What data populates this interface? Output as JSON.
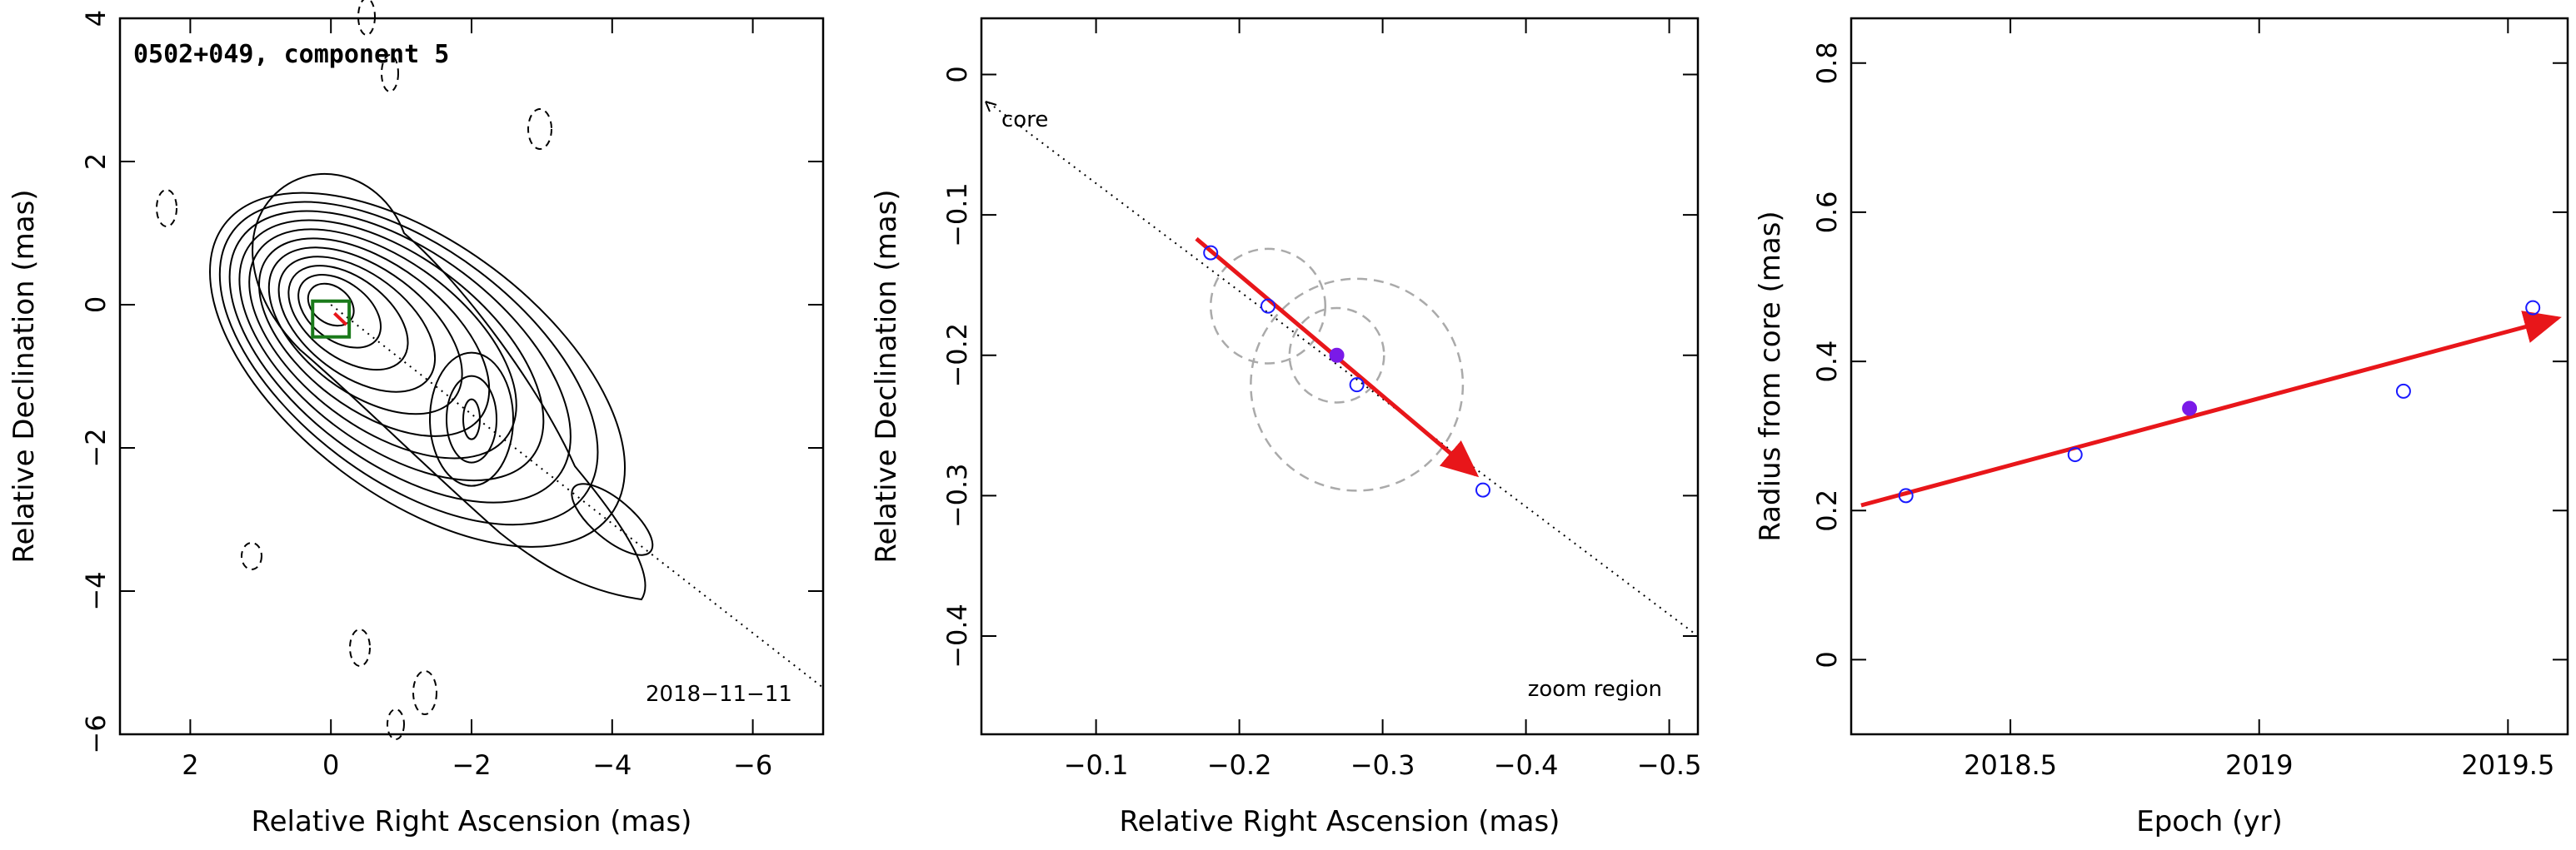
{
  "chart_data": [
    {
      "type": "scatter",
      "panel": "left",
      "title": "0502+049, component 5",
      "date_label": "2018−11−11",
      "xlabel": "Relative Right Ascension (mas)",
      "ylabel": "Relative Declination (mas)",
      "xlim": [
        3,
        -7
      ],
      "ylim": [
        -6,
        4
      ],
      "xticks": [
        2,
        0,
        -2,
        -4,
        -6
      ],
      "xtick_labels": [
        "2",
        "0",
        "−2",
        "−4",
        "−6"
      ],
      "yticks": [
        -6,
        -4,
        -2,
        0,
        2,
        4
      ],
      "ytick_labels": [
        "−6",
        "−4",
        "−2",
        "0",
        "2",
        "4"
      ],
      "contour_sources": [
        {
          "x": 0.0,
          "y": 0.0,
          "levels": 11
        },
        {
          "x": -2.0,
          "y": -1.6,
          "levels": 3
        },
        {
          "x": -4.0,
          "y": -3.0,
          "levels": 1
        }
      ],
      "zoom_box": {
        "x": [
          -0.26,
          0.26
        ],
        "y": [
          -0.45,
          0.05
        ]
      },
      "trajectory_line": {
        "x": [
          0.0,
          -7.0
        ],
        "y": [
          0.0,
          -5.35
        ]
      },
      "colors": {
        "contour": "#000000",
        "zoom_box": "#1a7a1a",
        "arrow": "#e8161a",
        "guide": "#000000"
      }
    },
    {
      "type": "scatter",
      "panel": "middle",
      "label": "zoom region",
      "core_label": "core",
      "xlabel": "Relative Right Ascension (mas)",
      "ylabel": "Relative Declination (mas)",
      "xlim": [
        -0.02,
        -0.52
      ],
      "ylim": [
        -0.47,
        0.04
      ],
      "xticks": [
        -0.1,
        -0.2,
        -0.3,
        -0.4,
        -0.5
      ],
      "xtick_labels": [
        "−0.1",
        "−0.2",
        "−0.3",
        "−0.4",
        "−0.5"
      ],
      "yticks": [
        0,
        -0.1,
        -0.2,
        -0.3,
        -0.4
      ],
      "ytick_labels": [
        "0",
        "−0.1",
        "−0.2",
        "−0.3",
        "−0.4"
      ],
      "points": [
        {
          "x": -0.18,
          "y": -0.127,
          "filled": false
        },
        {
          "x": -0.22,
          "y": -0.165,
          "filled": false
        },
        {
          "x": -0.268,
          "y": -0.2,
          "filled": true
        },
        {
          "x": -0.282,
          "y": -0.221,
          "filled": false
        },
        {
          "x": -0.37,
          "y": -0.296,
          "filled": false
        }
      ],
      "circles": [
        {
          "x": -0.22,
          "y": -0.165,
          "r": 0.04
        },
        {
          "x": -0.268,
          "y": -0.2,
          "r": 0.033
        },
        {
          "x": -0.282,
          "y": -0.221,
          "r": 0.074
        }
      ],
      "arrow": {
        "x0": -0.17,
        "y0": -0.117,
        "x1": -0.365,
        "y1": -0.285
      },
      "guide_line": {
        "x0": -0.025,
        "y0": -0.02,
        "x1": -0.52,
        "y1": -0.4
      },
      "colors": {
        "point": "#1a1aff",
        "filled_point": "#7a1ae8",
        "circle": "#aaaaaa",
        "arrow": "#e8161a"
      }
    },
    {
      "type": "scatter",
      "panel": "right",
      "xlabel": "Epoch (yr)",
      "ylabel": "Radius from core (mas)",
      "xlim": [
        2018.18,
        2019.62
      ],
      "ylim": [
        -0.1,
        0.86
      ],
      "xticks": [
        2018.5,
        2019,
        2019.5
      ],
      "xtick_labels": [
        "2018.5",
        "2019",
        "2019.5"
      ],
      "yticks": [
        0,
        0.2,
        0.4,
        0.6,
        0.8
      ],
      "ytick_labels": [
        "0",
        "0.2",
        "0.4",
        "0.6",
        "0.8"
      ],
      "points": [
        {
          "x": 2018.29,
          "y": 0.22,
          "filled": false
        },
        {
          "x": 2018.63,
          "y": 0.275,
          "filled": false
        },
        {
          "x": 2018.86,
          "y": 0.337,
          "filled": true
        },
        {
          "x": 2019.29,
          "y": 0.36,
          "filled": false
        },
        {
          "x": 2019.55,
          "y": 0.472,
          "filled": false
        }
      ],
      "fit_arrow": {
        "x0": 2018.2,
        "y0": 0.207,
        "x1": 2019.6,
        "y1": 0.458
      },
      "colors": {
        "point": "#1a1aff",
        "filled_point": "#7a1ae8",
        "arrow": "#e8161a"
      }
    }
  ]
}
